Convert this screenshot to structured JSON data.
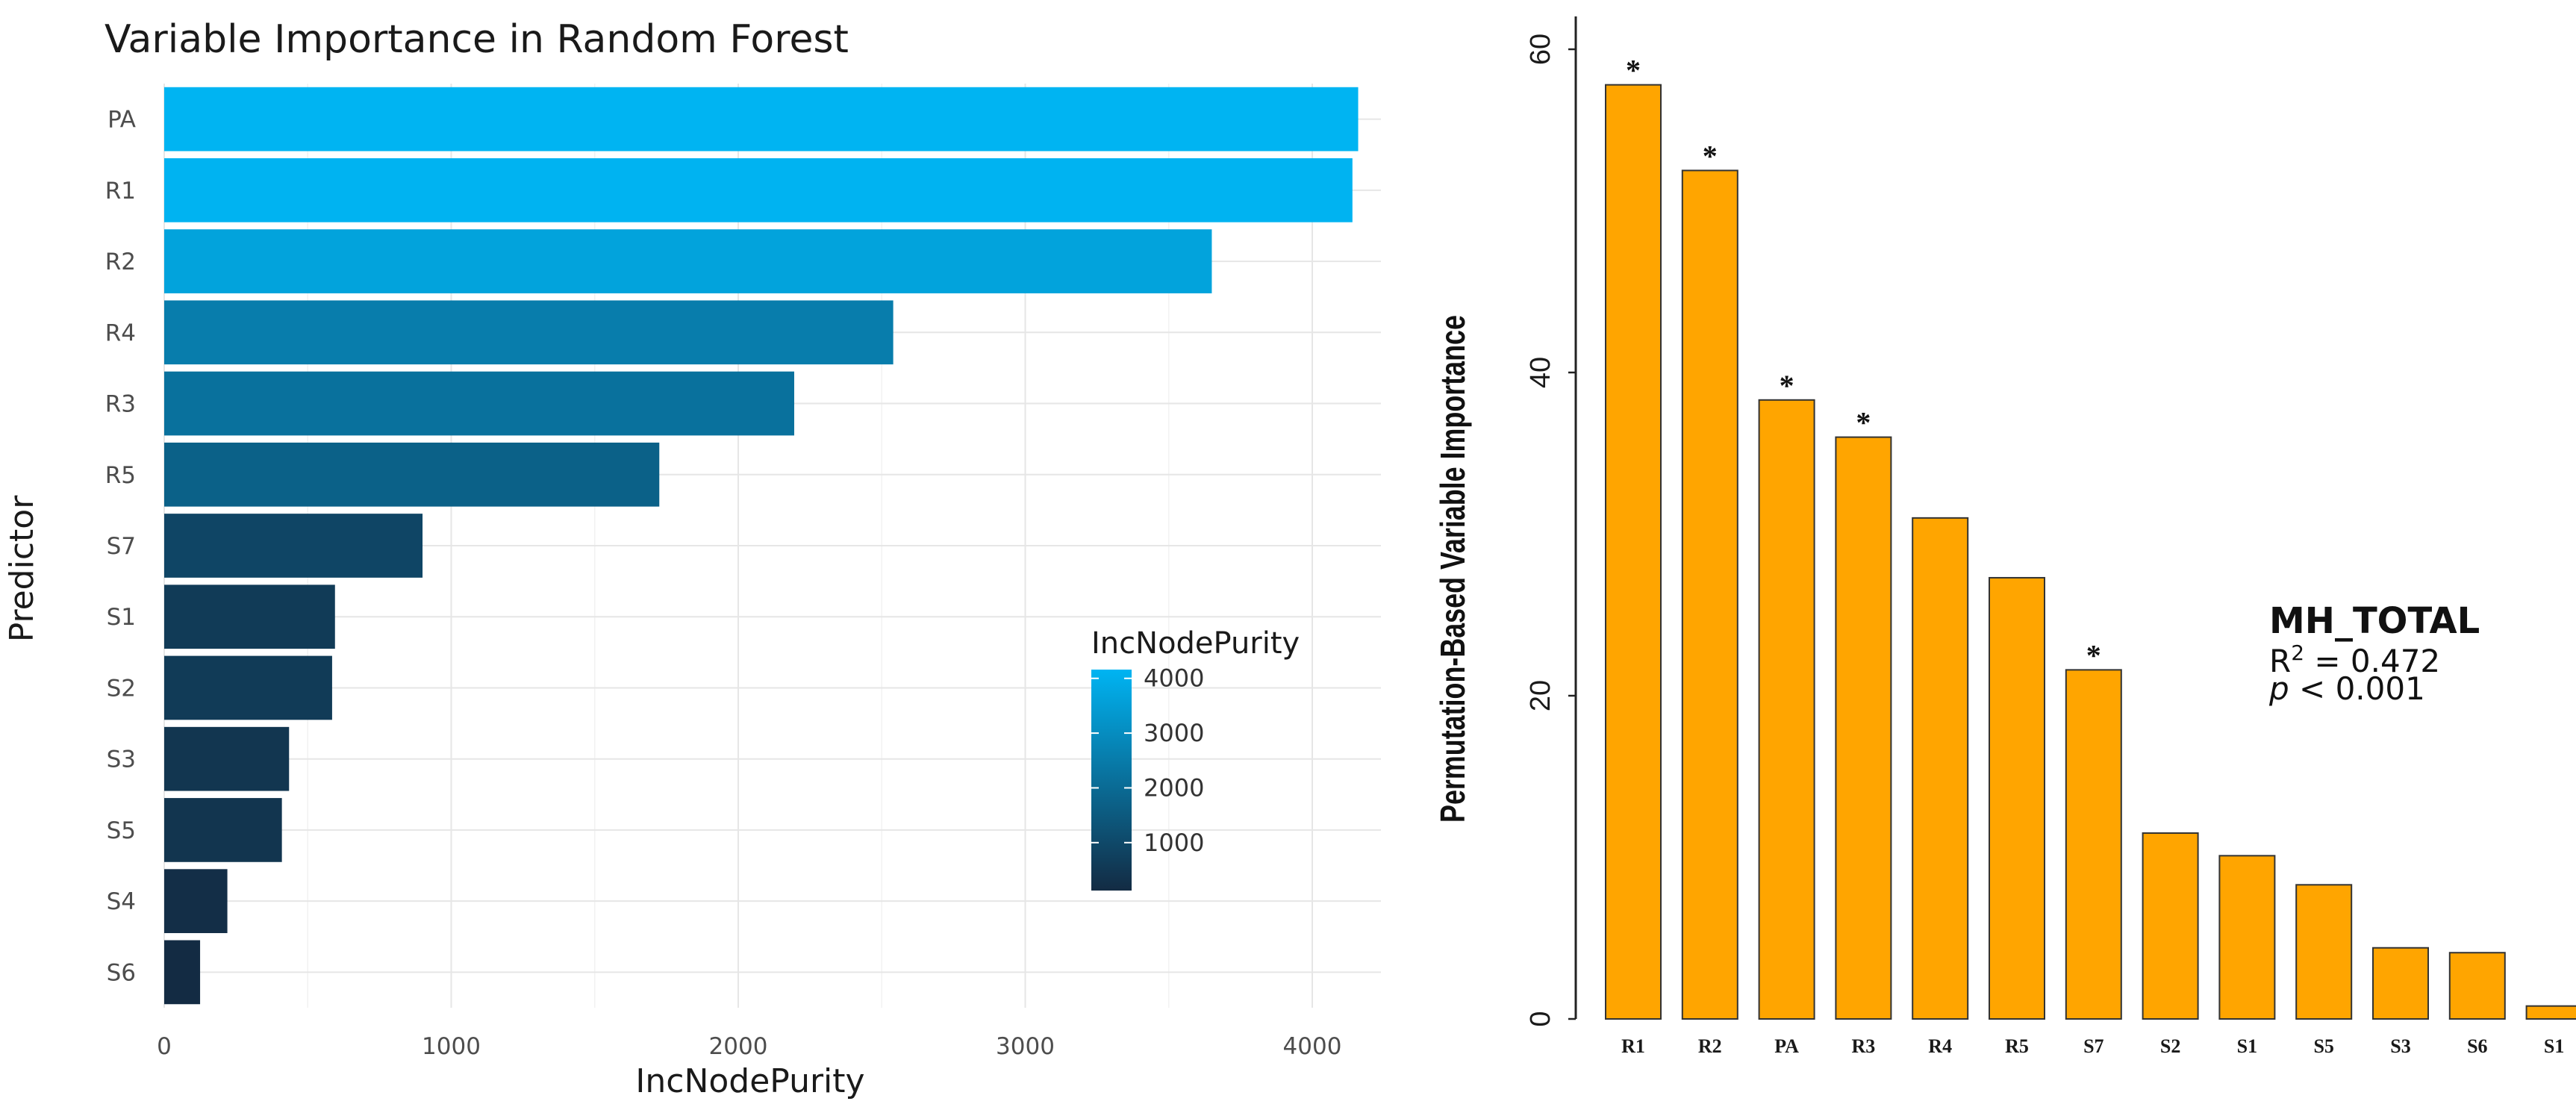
{
  "colors": {
    "left_low": "#132b43",
    "left_high": "#00b4f2",
    "right_bar": "#ffa500",
    "right_bar_stroke": "#333333",
    "grid": "#e6e6e6"
  },
  "chart_data": [
    {
      "type": "bar",
      "orientation": "horizontal",
      "title": "Variable Importance in Random Forest",
      "xlabel": "IncNodePurity",
      "ylabel": "Predictor",
      "categories": [
        "PA",
        "R1",
        "R2",
        "R4",
        "R3",
        "R5",
        "S7",
        "S1",
        "S2",
        "S3",
        "S5",
        "S4",
        "S6"
      ],
      "values": [
        4160,
        4140,
        3650,
        2540,
        2195,
        1725,
        900,
        595,
        585,
        435,
        410,
        220,
        125
      ],
      "xlim": [
        0,
        4200
      ],
      "xticks": [
        "0",
        "1000",
        "2000",
        "3000",
        "4000"
      ],
      "grid": true,
      "legend": {
        "title": "IncNodePurity",
        "position": "right",
        "type": "colorbar",
        "range": [
          125,
          4160
        ],
        "ticks": [
          "4000",
          "3000",
          "2000",
          "1000"
        ]
      }
    },
    {
      "type": "bar",
      "orientation": "vertical",
      "title": "",
      "xlabel": "",
      "ylabel": "Permutation-Based Variable Importance",
      "categories": [
        "R1",
        "R2",
        "PA",
        "R3",
        "R4",
        "R5",
        "S7",
        "S2",
        "S1",
        "S5",
        "S3",
        "S6",
        "S1"
      ],
      "values": [
        57.8,
        52.5,
        38.3,
        36.0,
        31.0,
        27.3,
        21.6,
        11.5,
        10.1,
        8.3,
        4.4,
        4.1,
        0.8
      ],
      "significant": [
        true,
        true,
        true,
        true,
        false,
        false,
        true,
        false,
        false,
        false,
        false,
        false,
        false
      ],
      "significance_marker": "*",
      "ylim": [
        0,
        60
      ],
      "yticks": [
        "0",
        "20",
        "40",
        "60"
      ],
      "grid": false,
      "annotation": {
        "title": "MH_TOTAL",
        "r2_label": "R",
        "r2_sup": "2",
        "r2_value": " = 0.472",
        "p_label": "p",
        "p_value": " < 0.001"
      }
    }
  ]
}
